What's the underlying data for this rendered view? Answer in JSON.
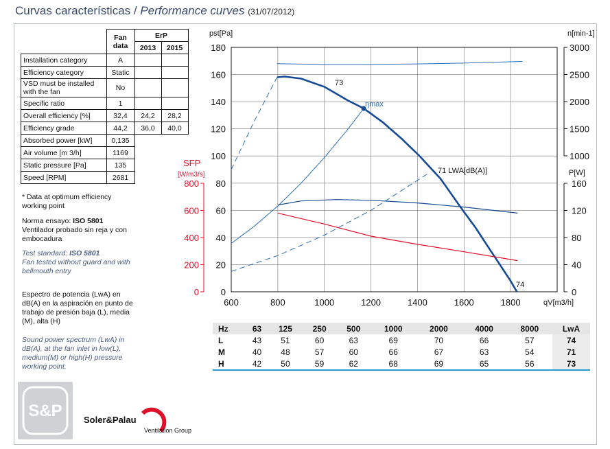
{
  "header": {
    "title": "Curvas características / ",
    "title_en": "Performance curves",
    "date": "(31/07/2012)"
  },
  "spec_table": {
    "header": [
      "Fan data",
      "ErP",
      "2013",
      "2015"
    ],
    "rows": [
      [
        "Installation category",
        "A"
      ],
      [
        "Efficiency category",
        "Static"
      ],
      [
        "VSD must be installed with the fan",
        "No"
      ],
      [
        "Specific ratio",
        "1"
      ],
      [
        "Overall efficiency [%]",
        "32,4",
        "24,2",
        "28,2"
      ],
      [
        "Efficiency grade",
        "44,2",
        "36,0",
        "40,0"
      ],
      [
        "Absorbed power [kW]",
        "0,135"
      ],
      [
        "Air volume [m 3/h]",
        "1169"
      ],
      [
        "Static pressure [Pa]",
        "135"
      ],
      [
        "Speed [RPM]",
        "2681"
      ]
    ]
  },
  "notes": {
    "optimum": "* Data at optimum efficiency working point",
    "norma": "Norma ensayo:",
    "norma_std": "ISO 5801",
    "norma_desc": "Ventilador probado sin reja y con embocadura",
    "test": "Test standard:",
    "test_std": "ISO 5801",
    "test_desc": "Fan tested without guard and with bellmouth entry",
    "espectro": "Espectro de potencia (LwA) en dB(A) en la aspiración en punto de trabajo de presión baja (L), media (M), alta (H)",
    "spectrum": "Sound power spectrum (LwA) in dB(A), at the fan inlet in low(L), medium(M) or high(H) pressure working point."
  },
  "sound_table": {
    "header": [
      "Hz",
      "63",
      "125",
      "250",
      "500",
      "1000",
      "2000",
      "4000",
      "8000",
      "LwA"
    ],
    "rows": [
      [
        "L",
        "43",
        "51",
        "60",
        "63",
        "69",
        "70",
        "66",
        "57",
        "74"
      ],
      [
        "M",
        "40",
        "48",
        "57",
        "60",
        "66",
        "67",
        "63",
        "54",
        "71"
      ],
      [
        "H",
        "42",
        "50",
        "59",
        "62",
        "68",
        "69",
        "65",
        "56",
        "73"
      ]
    ]
  },
  "logo": {
    "mark": "S&P",
    "brand": "Soler&Palau",
    "group": "Ventilation Group"
  },
  "chart_data": {
    "type": "line",
    "x_label": "qV[m3/h]",
    "y_label": "pst[Pa]",
    "y2_label": "n[min-1]",
    "y3_label": "P[W]",
    "sfp_label": "SFP",
    "sfp_unit": "[W/m3/s]",
    "xlim": [
      600,
      2000
    ],
    "xticks": [
      600,
      800,
      1000,
      1200,
      1400,
      1600,
      1800
    ],
    "ylim": [
      0,
      180
    ],
    "yticks": [
      0,
      20,
      40,
      60,
      80,
      100,
      120,
      140,
      160,
      180
    ],
    "y2lim": [
      1000,
      3000
    ],
    "y2ticks": [
      1000,
      1500,
      2000,
      2500,
      3000
    ],
    "y3lim": [
      0,
      160
    ],
    "y3ticks": [
      0,
      40,
      80,
      120,
      160
    ],
    "sfplim": [
      0,
      800
    ],
    "sfpticks": [
      0,
      200,
      400,
      600,
      800
    ],
    "grid": true,
    "series": [
      {
        "color": "#154a96",
        "width": 2.6,
        "axis": "y",
        "x": [
          797,
          830,
          900,
          1000,
          1100,
          1169,
          1250,
          1330,
          1411,
          1500,
          1582,
          1650,
          1700,
          1750,
          1800,
          1827
        ],
        "values": [
          158,
          158.5,
          157,
          151,
          141,
          135,
          125,
          113,
          99.6,
          83,
          63,
          47,
          34,
          21,
          8,
          0
        ]
      },
      {
        "color": "#2d6db5",
        "width": 1,
        "dashed": true,
        "axis": "y",
        "x": [
          600,
          700,
          797
        ],
        "values": [
          90,
          126,
          158
        ]
      },
      {
        "color": "#2d6db5",
        "width": 1,
        "axis": "y2",
        "x": [
          797,
          1000,
          1200,
          1400,
          1600,
          1850
        ],
        "values": [
          2700,
          2685,
          2685,
          2695,
          2710,
          2740
        ]
      },
      {
        "color": "#2d6db5",
        "width": 1,
        "axis": "y",
        "x": [
          600,
          700,
          800,
          900,
          1000,
          1100,
          1169
        ],
        "values": [
          35.6,
          48.4,
          63.2,
          80,
          98.8,
          119.5,
          135
        ]
      },
      {
        "color": "#2d6db5",
        "width": 1,
        "dashed": true,
        "axis": "y",
        "x": [
          600,
          800,
          1000,
          1200,
          1450
        ],
        "values": [
          15,
          26.7,
          41.7,
          60,
          87.6
        ]
      },
      {
        "color": "#154a96",
        "width": 1.2,
        "axis": "y3",
        "x": [
          800,
          900,
          1050,
          1200,
          1400,
          1600,
          1830
        ],
        "values": [
          128,
          134,
          136,
          135,
          131,
          125,
          116
        ]
      },
      {
        "color": "#e0102a",
        "width": 1.2,
        "axis": "sfp",
        "x": [
          800,
          1000,
          1200,
          1400,
          1600,
          1830
        ],
        "values": [
          580,
          500,
          410,
          350,
          295,
          230
        ]
      }
    ],
    "points": [
      {
        "x": 1169,
        "y": 135,
        "color": "#154a96"
      }
    ],
    "annotations": [
      "73",
      "ηmax",
      "71 LWA[dB(A)]",
      "74"
    ]
  }
}
